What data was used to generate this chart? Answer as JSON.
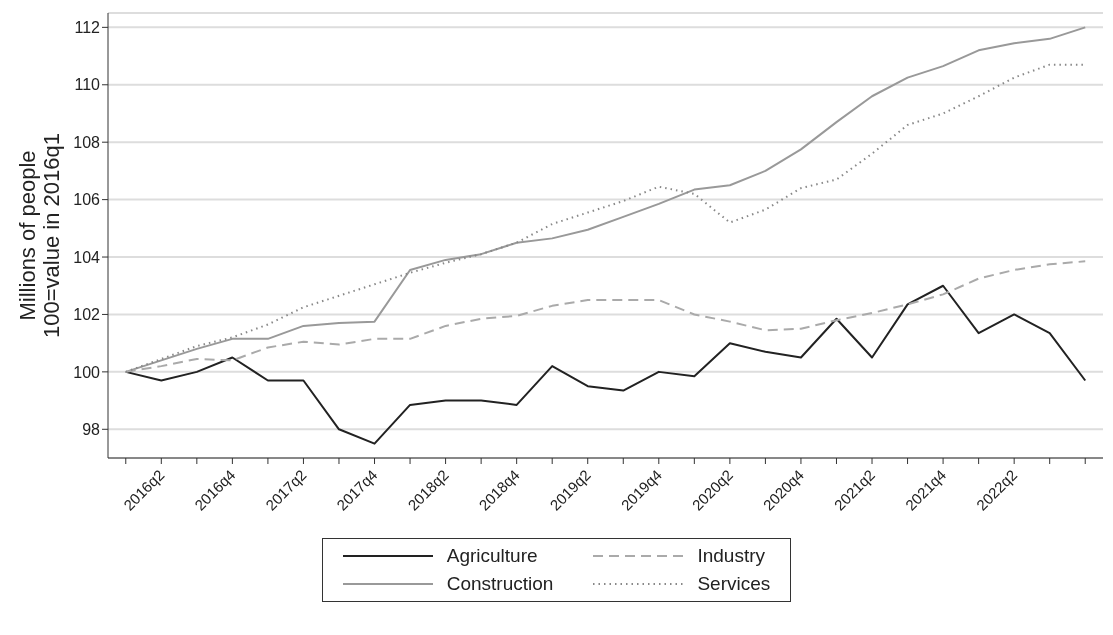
{
  "chart_data": {
    "type": "line",
    "ylabel": "Millions of people\n100=value in 2016q1",
    "categories": [
      null,
      "2016q2",
      null,
      "2016q4",
      null,
      "2017q2",
      null,
      "2017q4",
      null,
      "2018q2",
      null,
      "2018q4",
      null,
      "2019q2",
      null,
      "2019q4",
      null,
      "2020q2",
      null,
      "2020q4",
      null,
      "2021q2",
      null,
      "2021q4",
      null,
      "2022q2",
      null,
      null
    ],
    "series": [
      {
        "name": "Agriculture",
        "color": "#222222",
        "line_style": "solid",
        "values": [
          100,
          99.7,
          100,
          100.5,
          99.7,
          99.7,
          98,
          97.5,
          98.85,
          99,
          99,
          98.85,
          100.2,
          99.5,
          99.35,
          100,
          99.85,
          101,
          100.7,
          100.5,
          101.85,
          100.5,
          102.35,
          103,
          101.35,
          102,
          101.35,
          99.7
        ]
      },
      {
        "name": "Construction",
        "color": "#999999",
        "line_style": "solid",
        "values": [
          100,
          100.4,
          100.8,
          101.15,
          101.15,
          101.6,
          101.7,
          101.75,
          103.55,
          103.9,
          104.1,
          104.5,
          104.65,
          104.95,
          105.4,
          105.85,
          106.35,
          106.5,
          107,
          107.75,
          108.7,
          109.6,
          110.25,
          110.65,
          111.2,
          111.45,
          111.6,
          112
        ]
      },
      {
        "name": "Industry",
        "color": "#aaaaaa",
        "line_style": "dashed",
        "values": [
          100,
          100.2,
          100.45,
          100.4,
          100.85,
          101.05,
          100.95,
          101.15,
          101.15,
          101.6,
          101.85,
          101.95,
          102.3,
          102.5,
          102.5,
          102.5,
          102,
          101.75,
          101.45,
          101.5,
          101.8,
          102.05,
          102.35,
          102.7,
          103.25,
          103.55,
          103.75,
          103.85
        ]
      },
      {
        "name": "Services",
        "color": "#888888",
        "line_style": "dotted",
        "values": [
          100,
          100.45,
          100.9,
          101.2,
          101.65,
          102.25,
          102.65,
          103.05,
          103.45,
          103.8,
          104.1,
          104.5,
          105.15,
          105.55,
          105.95,
          106.45,
          106.2,
          105.2,
          105.65,
          106.4,
          106.7,
          107.6,
          108.6,
          109,
          109.6,
          110.25,
          110.7,
          110.7
        ]
      }
    ],
    "ylim": [
      97,
      112.5
    ],
    "yticks": [
      98,
      100,
      102,
      104,
      106,
      108,
      110,
      112
    ],
    "grid": "y",
    "legend": "bottom",
    "marker": "none"
  }
}
